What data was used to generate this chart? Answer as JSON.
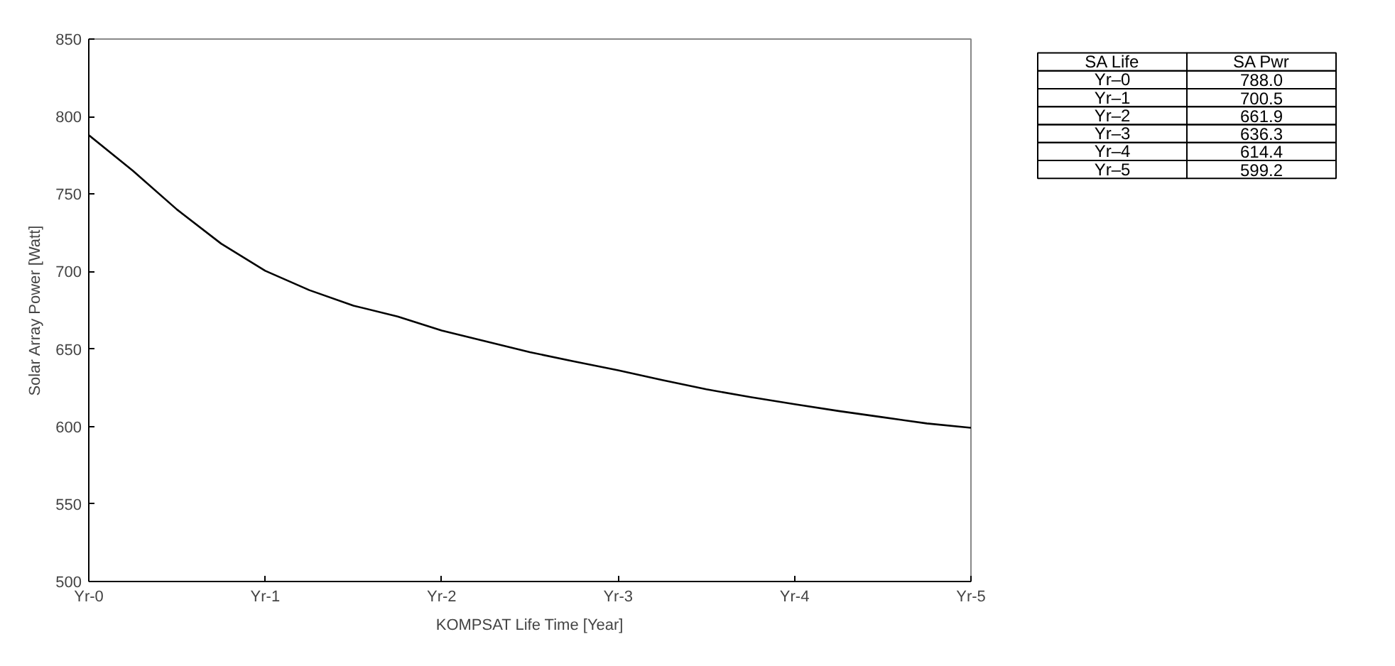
{
  "chart_data": {
    "type": "line",
    "xlabel": "KOMPSAT Life Time [Year]",
    "ylabel": "Solar Array Power [Watt]",
    "categories": [
      "Yr-0",
      null,
      null,
      null,
      "Yr-1",
      null,
      null,
      null,
      "Yr-2",
      null,
      null,
      null,
      "Yr-3",
      null,
      null,
      null,
      "Yr-4",
      null,
      null,
      null,
      "Yr-5"
    ],
    "values": [
      788.0,
      765,
      740,
      718,
      700.5,
      688,
      678,
      671,
      661.9,
      655,
      648,
      642,
      636.3,
      630,
      624,
      619,
      614.4,
      610,
      606,
      602,
      599.2
    ],
    "color": "#000000",
    "ylim": [
      500,
      850
    ],
    "yticks": [
      500,
      550,
      600,
      650,
      700,
      750,
      800,
      850
    ],
    "annotations": [
      "SA Life",
      "SA Pwr",
      "Yr–0",
      "788.0",
      "Yr–1",
      "700.5",
      "Yr–2",
      "661.9",
      "Yr–3",
      "636.3",
      "Yr–4",
      "614.4",
      "Yr–5",
      "599.2"
    ],
    "grid": false,
    "marker": "none",
    "line_style": "solid"
  }
}
